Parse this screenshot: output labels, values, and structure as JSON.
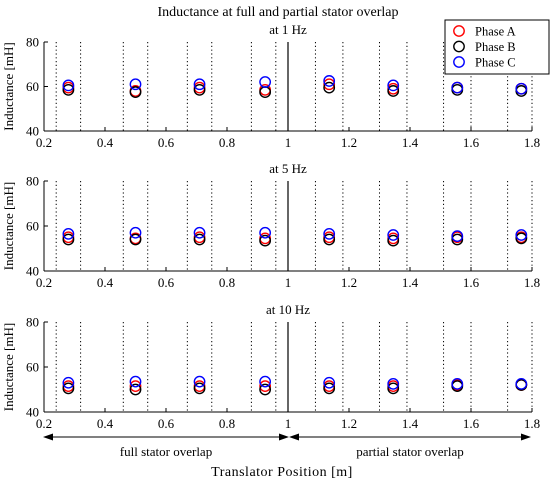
{
  "figure": {
    "title": "Inductance at full and partial stator overlap",
    "xlabel": "Translator Position [m]",
    "full_overlap_label": "full stator overlap",
    "partial_overlap_label": "partial stator overlap"
  },
  "legend": {
    "entries": [
      {
        "label": "Phase A",
        "color": "#ff0000"
      },
      {
        "label": "Phase B",
        "color": "#000000"
      },
      {
        "label": "Phase C",
        "color": "#0000ff"
      }
    ],
    "placement": "top-right"
  },
  "chart_data": [
    {
      "type": "scatter",
      "title": "at 1 Hz",
      "ylabel": "Inductance [mH]",
      "xlim": [
        0.2,
        1.8
      ],
      "ylim": [
        40,
        80
      ],
      "xticks": [
        0.2,
        0.4,
        0.6,
        0.8,
        1,
        1.2,
        1.4,
        1.6,
        1.8
      ],
      "xticklabels": [
        "0.2",
        "0.4",
        "0.6",
        "0.8",
        "1",
        "1.2",
        "1.4",
        "1.6",
        "1.8"
      ],
      "yticks": [
        40,
        60,
        80
      ],
      "yticklabels": [
        "40",
        "60",
        "80"
      ],
      "x": [
        0.28,
        0.5,
        0.71,
        0.925,
        1.135,
        1.345,
        1.555,
        1.765
      ],
      "series": [
        {
          "name": "Phase A",
          "color": "#ff0000",
          "values": [
            59.5,
            58,
            59.5,
            58.5,
            61,
            59,
            59.5,
            59
          ]
        },
        {
          "name": "Phase B",
          "color": "#000000",
          "values": [
            58.5,
            57.5,
            58.5,
            57.5,
            59.5,
            58,
            58.5,
            58
          ]
        },
        {
          "name": "Phase C",
          "color": "#0000ff",
          "values": [
            60.5,
            61,
            61,
            62,
            62.5,
            60.5,
            59.5,
            59
          ]
        }
      ],
      "vlines_dotted": [
        0.24,
        0.32,
        0.46,
        0.54,
        0.67,
        0.75,
        0.88,
        0.96,
        1.09,
        1.18,
        1.3,
        1.39,
        1.51,
        1.6,
        1.72,
        1.8
      ],
      "vline_solid": 1,
      "grid": false
    },
    {
      "type": "scatter",
      "title": "at 5 Hz",
      "ylabel": "Inductance [mH]",
      "xlim": [
        0.2,
        1.8
      ],
      "ylim": [
        40,
        80
      ],
      "xticks": [
        0.2,
        0.4,
        0.6,
        0.8,
        1,
        1.2,
        1.4,
        1.6,
        1.8
      ],
      "xticklabels": [
        "0.2",
        "0.4",
        "0.6",
        "0.8",
        "1",
        "1.2",
        "1.4",
        "1.6",
        "1.8"
      ],
      "yticks": [
        40,
        60,
        80
      ],
      "yticklabels": [
        "40",
        "60",
        "80"
      ],
      "x": [
        0.28,
        0.5,
        0.71,
        0.925,
        1.135,
        1.345,
        1.555,
        1.765
      ],
      "series": [
        {
          "name": "Phase A",
          "color": "#ff0000",
          "values": [
            55,
            54.5,
            55,
            54.5,
            55,
            54.5,
            55,
            55
          ]
        },
        {
          "name": "Phase B",
          "color": "#000000",
          "values": [
            54,
            54,
            54,
            53.5,
            54,
            53.5,
            54,
            54.5
          ]
        },
        {
          "name": "Phase C",
          "color": "#0000ff",
          "values": [
            56.5,
            57,
            57,
            57,
            56.5,
            56,
            55.5,
            56
          ]
        }
      ],
      "vlines_dotted": [
        0.24,
        0.32,
        0.46,
        0.54,
        0.67,
        0.75,
        0.88,
        0.96,
        1.09,
        1.18,
        1.3,
        1.39,
        1.51,
        1.6,
        1.72,
        1.8
      ],
      "vline_solid": 1,
      "grid": false
    },
    {
      "type": "scatter",
      "title": "at 10 Hz",
      "ylabel": "Inductance [mH]",
      "xlim": [
        0.2,
        1.8
      ],
      "ylim": [
        40,
        80
      ],
      "xticks": [
        0.2,
        0.4,
        0.6,
        0.8,
        1,
        1.2,
        1.4,
        1.6,
        1.8
      ],
      "xticklabels": [
        "0.2",
        "0.4",
        "0.6",
        "0.8",
        "1",
        "1.2",
        "1.4",
        "1.6",
        "1.8"
      ],
      "yticks": [
        40,
        60,
        80
      ],
      "yticklabels": [
        "40",
        "60",
        "80"
      ],
      "x": [
        0.28,
        0.5,
        0.71,
        0.925,
        1.135,
        1.345,
        1.555,
        1.765
      ],
      "series": [
        {
          "name": "Phase A",
          "color": "#ff0000",
          "values": [
            51.5,
            51.5,
            51.5,
            51.5,
            51.5,
            51.5,
            52,
            52
          ]
        },
        {
          "name": "Phase B",
          "color": "#000000",
          "values": [
            50.5,
            50,
            50.5,
            50,
            50.5,
            50.5,
            51.5,
            52
          ]
        },
        {
          "name": "Phase C",
          "color": "#0000ff",
          "values": [
            53,
            53.5,
            53.5,
            53.5,
            53,
            52.5,
            52.5,
            52.5
          ]
        }
      ],
      "vlines_dotted": [
        0.24,
        0.32,
        0.46,
        0.54,
        0.67,
        0.75,
        0.88,
        0.96,
        1.09,
        1.18,
        1.3,
        1.39,
        1.51,
        1.6,
        1.72,
        1.8
      ],
      "vline_solid": 1,
      "grid": false
    }
  ]
}
